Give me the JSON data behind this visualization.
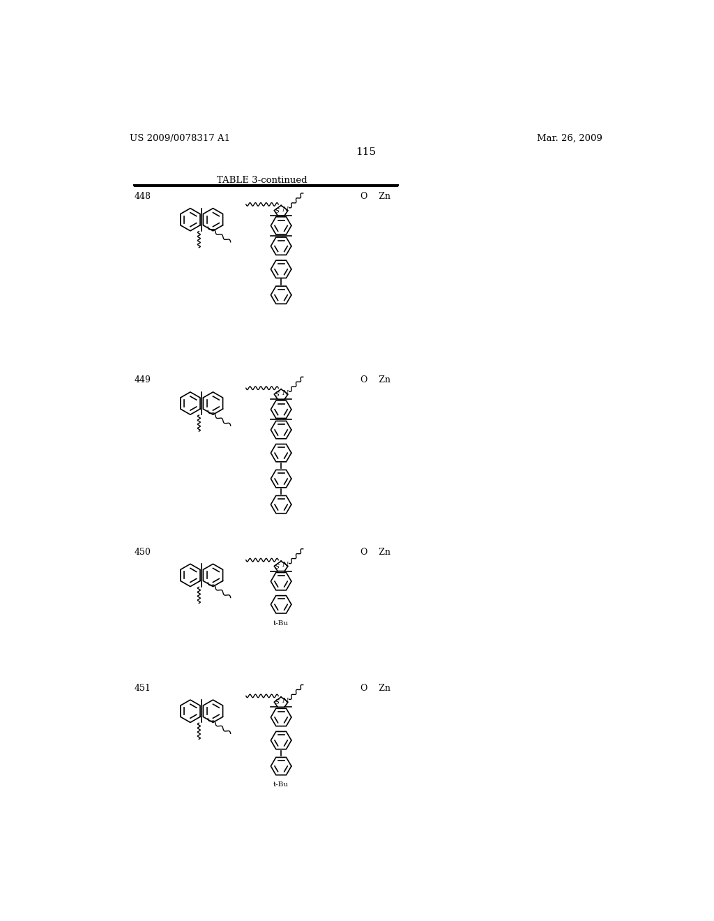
{
  "page_number": "115",
  "patent_left": "US 2009/0078317 A1",
  "patent_right": "Mar. 26, 2009",
  "table_title": "TABLE 3-continued",
  "entries": [
    {
      "number": "448",
      "right_label": "O    Zn",
      "n_chain": 2,
      "has_tbu": false,
      "fused_rings": 2
    },
    {
      "number": "449",
      "right_label": "O    Zn",
      "n_chain": 3,
      "has_tbu": false,
      "fused_rings": 2
    },
    {
      "number": "450",
      "right_label": "O    Zn",
      "n_chain": 1,
      "has_tbu": true,
      "fused_rings": 1
    },
    {
      "number": "451",
      "right_label": "O    Zn",
      "n_chain": 2,
      "has_tbu": true,
      "fused_rings": 1
    }
  ],
  "background_color": "#ffffff",
  "line_color": "#000000"
}
